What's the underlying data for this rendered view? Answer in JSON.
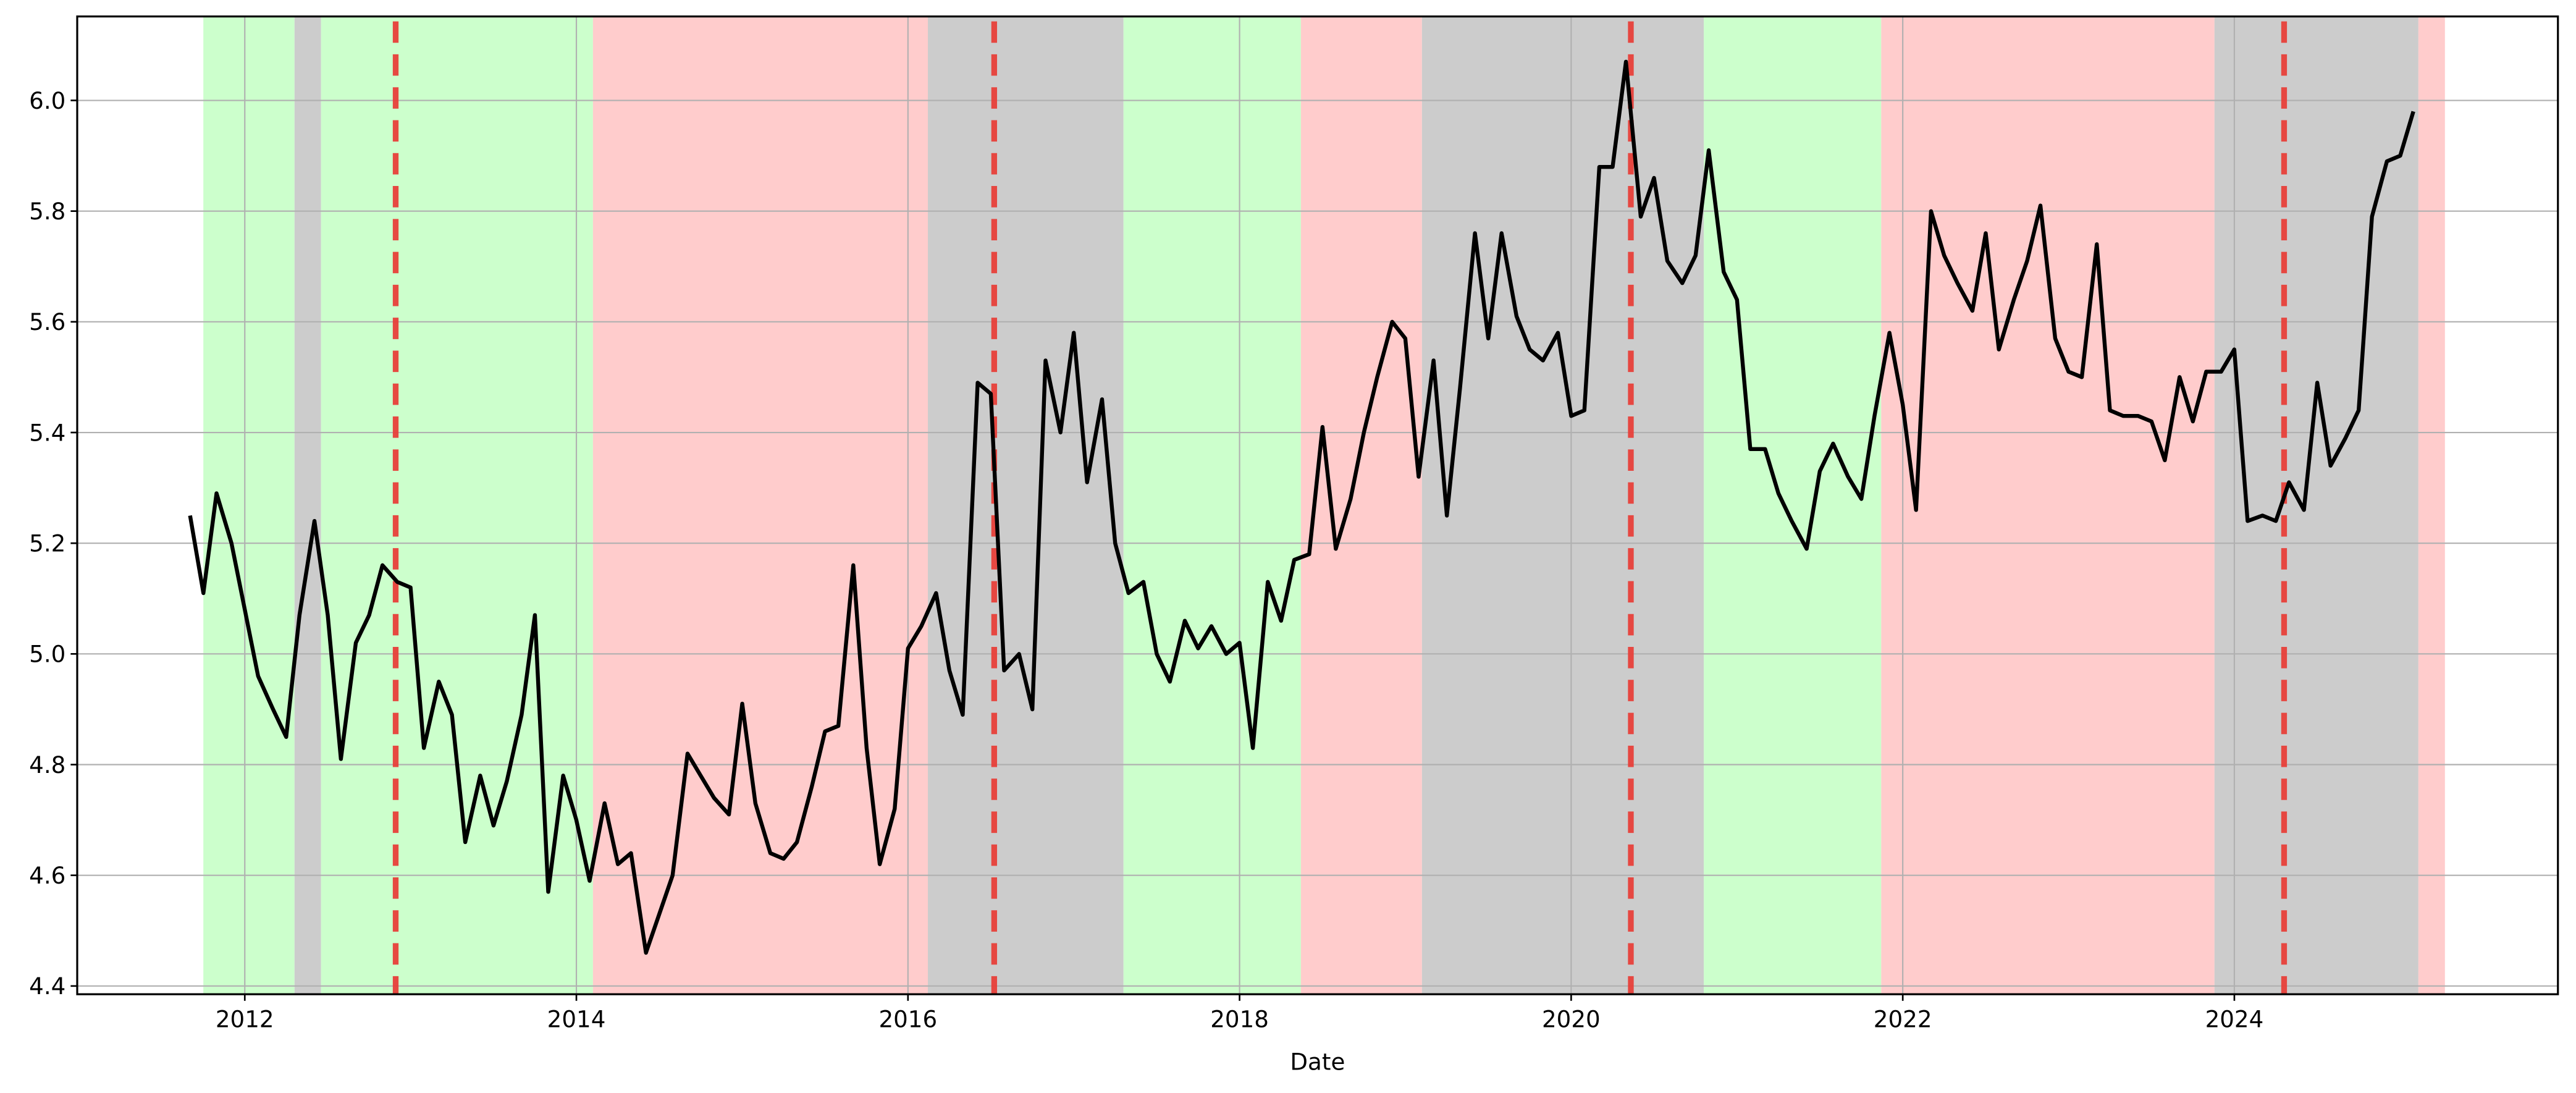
{
  "chart_data": {
    "type": "line",
    "title": "",
    "xlabel": "Date",
    "ylabel": "",
    "xlim": [
      2011.0,
      2025.9
    ],
    "ylim": [
      4.385,
      6.15
    ],
    "grid": true,
    "legend": null,
    "x_ticks": [
      "2012",
      "2014",
      "2016",
      "2018",
      "2020",
      "2022",
      "2024"
    ],
    "y_ticks": [
      "4.4",
      "4.6",
      "4.8",
      "5.0",
      "5.2",
      "5.4",
      "5.6",
      "5.8",
      "6.0"
    ],
    "colors": {
      "line": "#000000",
      "green_band": "#ccffcc",
      "red_band": "#ffcccc",
      "gray_band": "#cccccc",
      "event_line": "#e8403a",
      "grid": "#b0b0b0"
    },
    "bands": [
      {
        "start": 2011.75,
        "end": 2012.3,
        "regime": "green"
      },
      {
        "start": 2012.3,
        "end": 2012.46,
        "regime": "gray"
      },
      {
        "start": 2012.46,
        "end": 2014.1,
        "regime": "green"
      },
      {
        "start": 2014.1,
        "end": 2016.12,
        "regime": "red"
      },
      {
        "start": 2016.12,
        "end": 2017.3,
        "regime": "gray"
      },
      {
        "start": 2017.3,
        "end": 2018.37,
        "regime": "green"
      },
      {
        "start": 2018.37,
        "end": 2019.1,
        "regime": "red"
      },
      {
        "start": 2019.1,
        "end": 2020.8,
        "regime": "gray"
      },
      {
        "start": 2020.8,
        "end": 2021.87,
        "regime": "green"
      },
      {
        "start": 2021.87,
        "end": 2023.88,
        "regime": "red"
      },
      {
        "start": 2023.88,
        "end": 2025.11,
        "regime": "gray"
      },
      {
        "start": 2025.11,
        "end": 2025.27,
        "regime": "red"
      }
    ],
    "event_lines": [
      2012.91,
      2016.52,
      2020.36,
      2024.3
    ],
    "series": [
      {
        "name": "value",
        "x": [
          2011.67,
          2011.75,
          2011.83,
          2011.92,
          2012.0,
          2012.08,
          2012.17,
          2012.25,
          2012.33,
          2012.42,
          2012.5,
          2012.58,
          2012.67,
          2012.75,
          2012.83,
          2012.92,
          2013.0,
          2013.08,
          2013.17,
          2013.25,
          2013.33,
          2013.42,
          2013.5,
          2013.58,
          2013.67,
          2013.75,
          2013.83,
          2013.92,
          2014.0,
          2014.08,
          2014.17,
          2014.25,
          2014.33,
          2014.42,
          2014.5,
          2014.58,
          2014.67,
          2014.75,
          2014.83,
          2014.92,
          2015.0,
          2015.08,
          2015.17,
          2015.25,
          2015.33,
          2015.42,
          2015.5,
          2015.58,
          2015.67,
          2015.75,
          2015.83,
          2015.92,
          2016.0,
          2016.08,
          2016.17,
          2016.25,
          2016.33,
          2016.42,
          2016.5,
          2016.58,
          2016.67,
          2016.75,
          2016.83,
          2016.92,
          2017.0,
          2017.08,
          2017.17,
          2017.25,
          2017.33,
          2017.42,
          2017.5,
          2017.58,
          2017.67,
          2017.75,
          2017.83,
          2017.92,
          2018.0,
          2018.08,
          2018.17,
          2018.25,
          2018.33,
          2018.42,
          2018.5,
          2018.58,
          2018.67,
          2018.75,
          2018.83,
          2018.92,
          2019.0,
          2019.08,
          2019.17,
          2019.25,
          2019.33,
          2019.42,
          2019.5,
          2019.58,
          2019.67,
          2019.75,
          2019.83,
          2019.92,
          2020.0,
          2020.08,
          2020.17,
          2020.25,
          2020.33,
          2020.42,
          2020.5,
          2020.58,
          2020.67,
          2020.75,
          2020.83,
          2020.92,
          2021.0,
          2021.08,
          2021.17,
          2021.25,
          2021.33,
          2021.42,
          2021.5,
          2021.58,
          2021.67,
          2021.75,
          2021.83,
          2021.92,
          2022.0,
          2022.08,
          2022.17,
          2022.25,
          2022.33,
          2022.42,
          2022.5,
          2022.58,
          2022.67,
          2022.75,
          2022.83,
          2022.92,
          2023.0,
          2023.08,
          2023.17,
          2023.25,
          2023.33,
          2023.42,
          2023.5,
          2023.58,
          2023.67,
          2023.75,
          2023.83,
          2023.92,
          2024.0,
          2024.08,
          2024.17,
          2024.25,
          2024.33,
          2024.42,
          2024.5,
          2024.58,
          2024.67,
          2024.75,
          2024.83,
          2024.92,
          2025.0,
          2025.08
        ],
        "values": [
          5.25,
          5.11,
          5.29,
          5.2,
          5.08,
          4.96,
          4.9,
          4.85,
          5.07,
          5.24,
          5.07,
          4.81,
          5.02,
          5.07,
          5.16,
          5.13,
          5.12,
          4.83,
          4.95,
          4.89,
          4.66,
          4.78,
          4.69,
          4.77,
          4.89,
          5.07,
          4.57,
          4.78,
          4.7,
          4.59,
          4.73,
          4.62,
          4.64,
          4.46,
          4.53,
          4.6,
          4.82,
          4.78,
          4.74,
          4.71,
          4.91,
          4.73,
          4.64,
          4.63,
          4.66,
          4.76,
          4.86,
          4.87,
          5.16,
          4.83,
          4.62,
          4.72,
          5.01,
          5.05,
          5.11,
          4.97,
          4.89,
          5.49,
          5.47,
          4.97,
          5.0,
          4.9,
          5.53,
          5.4,
          5.58,
          5.31,
          5.46,
          5.2,
          5.11,
          5.13,
          5.0,
          4.95,
          5.06,
          5.01,
          5.05,
          5.0,
          5.02,
          4.83,
          5.13,
          5.06,
          5.17,
          5.18,
          5.41,
          5.19,
          5.28,
          5.4,
          5.5,
          5.6,
          5.57,
          5.32,
          5.53,
          5.25,
          5.48,
          5.76,
          5.57,
          5.76,
          5.61,
          5.55,
          5.53,
          5.58,
          5.43,
          5.44,
          5.88,
          5.88,
          6.07,
          5.79,
          5.86,
          5.71,
          5.67,
          5.72,
          5.91,
          5.69,
          5.64,
          5.37,
          5.37,
          5.29,
          5.24,
          5.19,
          5.33,
          5.38,
          5.32,
          5.28,
          5.43,
          5.58,
          5.45,
          5.26,
          5.8,
          5.72,
          5.67,
          5.62,
          5.76,
          5.55,
          5.64,
          5.71,
          5.81,
          5.57,
          5.51,
          5.5,
          5.74,
          5.44,
          5.43,
          5.43,
          5.42,
          5.35,
          5.5,
          5.42,
          5.51,
          5.51,
          5.55,
          5.24,
          5.25,
          5.24,
          5.31,
          5.26,
          5.49,
          5.34,
          5.39,
          5.44,
          5.79,
          5.89,
          5.9,
          5.98
        ]
      }
    ]
  }
}
